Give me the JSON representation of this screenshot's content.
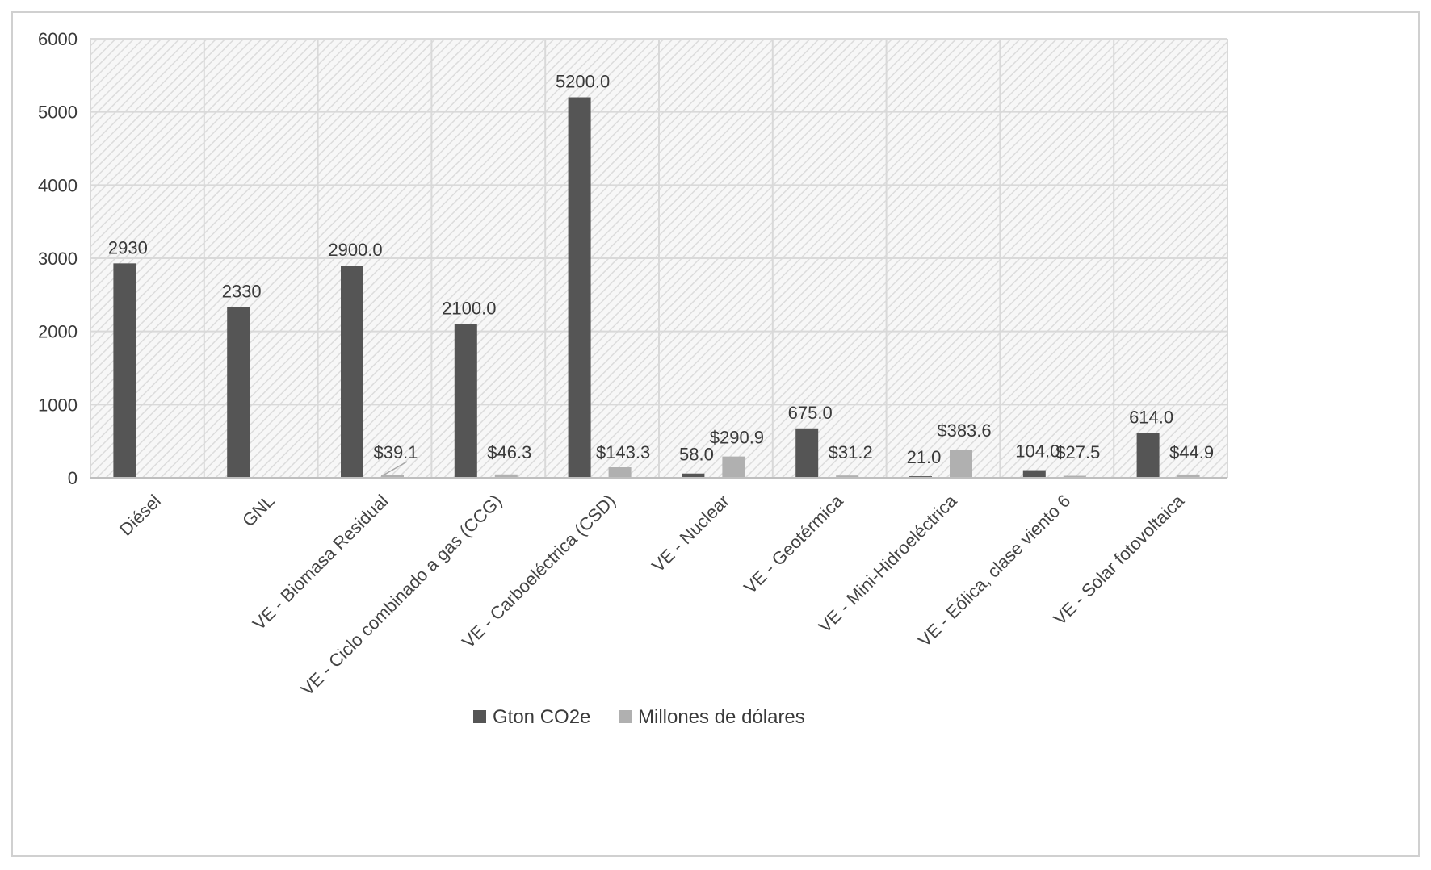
{
  "chart_data": {
    "type": "bar",
    "title": "",
    "xlabel": "",
    "ylabel": "",
    "ylim": [
      0,
      6000
    ],
    "yticks": [
      0,
      1000,
      2000,
      3000,
      4000,
      5000,
      6000
    ],
    "grid": true,
    "legend_position": "bottom",
    "categories": [
      "Diésel",
      "GNL",
      "VE - Biomasa Residual",
      "VE - Ciclo combinado a gas (CCG)",
      "VE - Carboeléctrica (CSD)",
      "VE - Nuclear",
      "VE - Geotérmica",
      "VE - Mini-Hidroeléctrica",
      "VE - Eólica, clase viento 6",
      "VE - Solar fotovoltaica"
    ],
    "series": [
      {
        "name": "Gton CO2e",
        "color": "#555555",
        "values": [
          2930,
          2330,
          2900,
          2100,
          5200,
          58,
          675,
          21,
          104,
          614
        ],
        "labels": [
          "2930",
          "2330",
          "2900.0",
          "2100.0",
          "5200.0",
          "58.0",
          "675.0",
          "21.0",
          "104.0",
          "614.0"
        ]
      },
      {
        "name": "Millones de dólares",
        "color": "#b0b0b0",
        "values": [
          null,
          null,
          39.1,
          46.3,
          143.3,
          290.9,
          31.2,
          383.6,
          27.5,
          44.9
        ],
        "labels": [
          "",
          "",
          "$39.1",
          "$46.3",
          "$143.3",
          "$290.9",
          "$31.2",
          "$383.6",
          "$27.5",
          "$44.9"
        ]
      }
    ]
  }
}
